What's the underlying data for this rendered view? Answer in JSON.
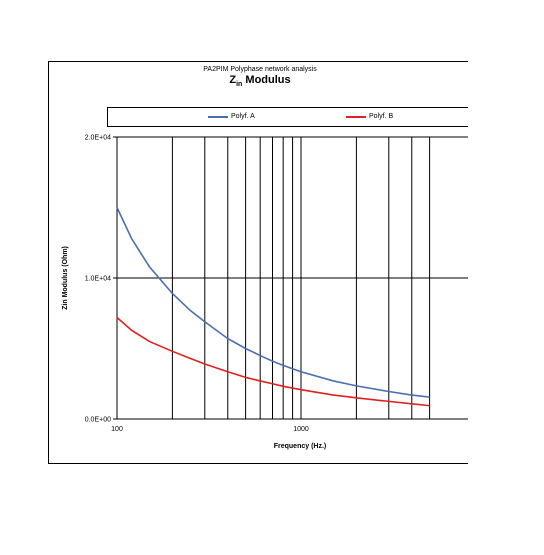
{
  "chart_data": {
    "type": "line",
    "subtitle": "PA2PIM Polyphase network analysis",
    "title_main": "Z",
    "title_sub": "in",
    "title_rest": " Modulus",
    "xlabel": "Frequency (Hz.)",
    "ylabel": "Zin Modulus (Ohm)",
    "x_scale": "log",
    "xlim": [
      100,
      6000
    ],
    "ylim": [
      0,
      20000
    ],
    "x_tick_labels": [
      {
        "value": 100,
        "label": "100"
      },
      {
        "value": 1000,
        "label": "1000"
      }
    ],
    "y_ticks": [
      {
        "value": 0,
        "label": "0.0E+00"
      },
      {
        "value": 10000,
        "label": "1.0E+04"
      },
      {
        "value": 20000,
        "label": "2.0E+04"
      }
    ],
    "x_gridlines": [
      200,
      300,
      400,
      500,
      600,
      700,
      800,
      900,
      1000,
      2000,
      3000,
      4000,
      5000
    ],
    "grid": true,
    "legend_position": "top",
    "series": [
      {
        "name": "Polyf. A",
        "color": "#4a6fb0",
        "x": [
          100,
          120,
          150,
          200,
          250,
          300,
          400,
          500,
          600,
          700,
          800,
          1000,
          1500,
          2000,
          3000,
          4000,
          5000
        ],
        "values": [
          15000,
          12800,
          10800,
          8900,
          7700,
          6900,
          5700,
          5000,
          4500,
          4100,
          3800,
          3350,
          2700,
          2350,
          1950,
          1700,
          1550
        ]
      },
      {
        "name": "Polyf. B",
        "color": "#e02020",
        "x": [
          100,
          120,
          150,
          200,
          250,
          300,
          400,
          500,
          600,
          700,
          800,
          1000,
          1500,
          2000,
          3000,
          4000,
          5000
        ],
        "values": [
          7200,
          6300,
          5500,
          4800,
          4300,
          3900,
          3350,
          2950,
          2700,
          2500,
          2320,
          2080,
          1700,
          1500,
          1250,
          1080,
          950
        ]
      }
    ]
  }
}
